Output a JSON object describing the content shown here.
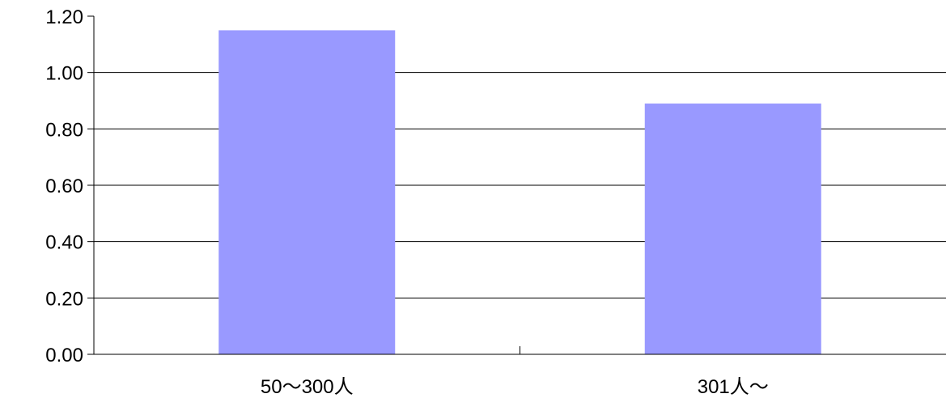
{
  "chart_data": {
    "type": "bar",
    "categories": [
      "50～300人",
      "301人～"
    ],
    "values": [
      1.15,
      0.89
    ],
    "ylim": [
      0,
      1.2
    ],
    "yticks": [
      "0.00",
      "0.20",
      "0.40",
      "0.60",
      "0.80",
      "1.00",
      "1.20"
    ],
    "grid": true,
    "bar_color": "#9999ff",
    "grid_color": "#000000"
  }
}
